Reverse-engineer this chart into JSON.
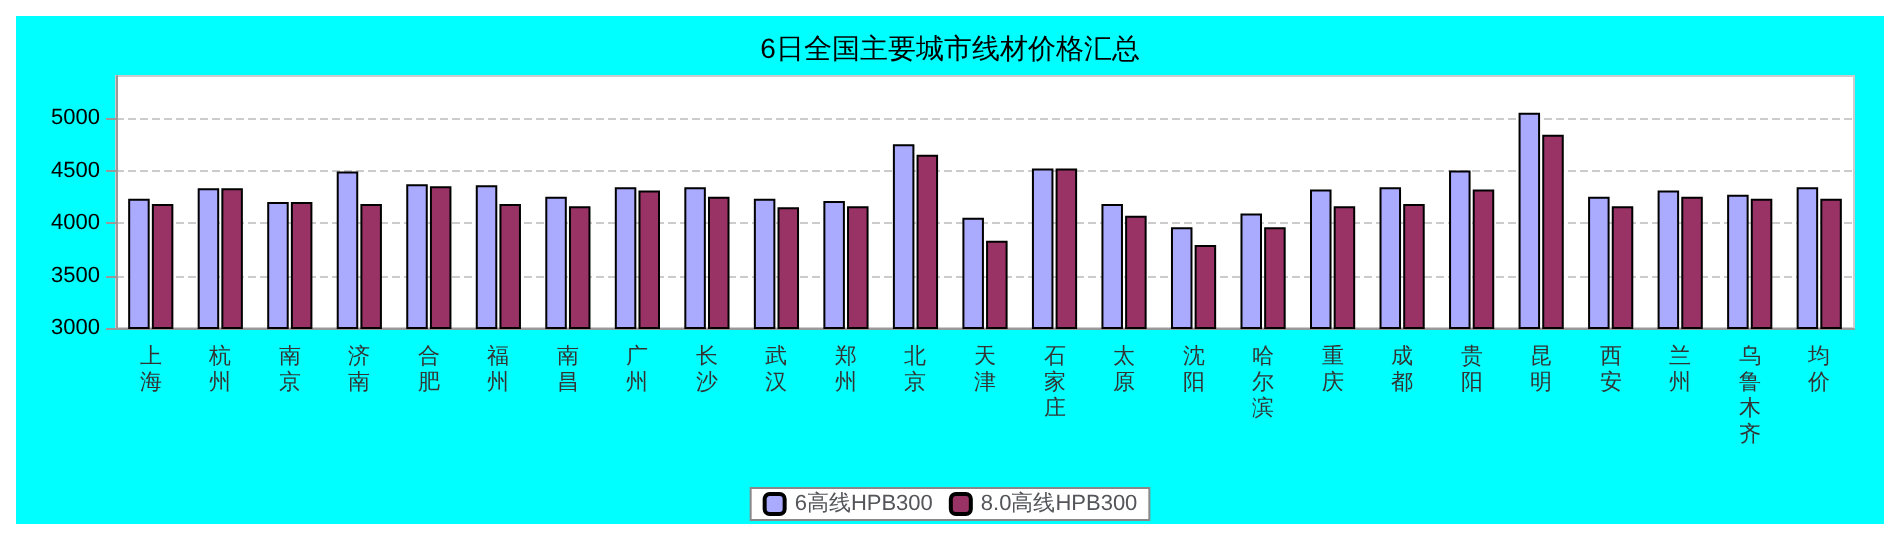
{
  "chart_data": {
    "type": "bar",
    "title": "6日全国主要城市线材价格汇总",
    "categories": [
      "上海",
      "杭州",
      "南京",
      "济南",
      "合肥",
      "福州",
      "南昌",
      "广州",
      "长沙",
      "武汉",
      "郑州",
      "北京",
      "天津",
      "石家庄",
      "太原",
      "沈阳",
      "哈尔滨",
      "重庆",
      "成都",
      "贵阳",
      "昆明",
      "西安",
      "兰州",
      "乌鲁木齐",
      "均价"
    ],
    "series": [
      {
        "name": "6高线HPB300",
        "color": "#aaaaff",
        "values": [
          4230,
          4330,
          4200,
          4490,
          4370,
          4360,
          4250,
          4340,
          4340,
          4230,
          4210,
          4750,
          4050,
          4520,
          4180,
          3960,
          4090,
          4320,
          4340,
          4500,
          5050,
          4250,
          4310,
          4270,
          4340
        ]
      },
      {
        "name": "8.0高线HPB300",
        "color": "#993366",
        "values": [
          4180,
          4330,
          4200,
          4180,
          4350,
          4180,
          4160,
          4310,
          4250,
          4150,
          4160,
          4650,
          3830,
          4520,
          4070,
          3790,
          3960,
          4160,
          4180,
          4320,
          4840,
          4160,
          4250,
          4230,
          4230
        ]
      }
    ],
    "ylim": [
      3000,
      5400
    ],
    "yticks": [
      3000,
      3500,
      4000,
      4500,
      5000
    ],
    "grid": "y",
    "legend": "bottom"
  }
}
